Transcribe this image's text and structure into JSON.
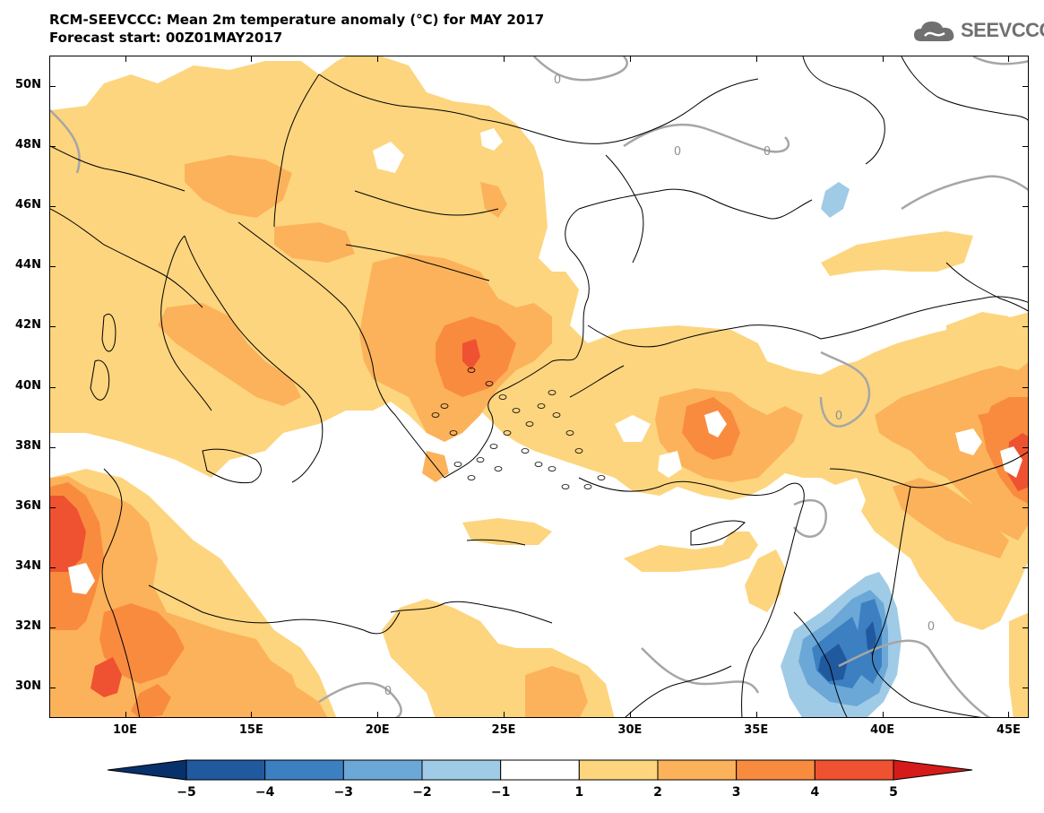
{
  "title": {
    "line1": "RCM-SEEVCCC: Mean 2m temperature anomaly (°C) for MAY 2017",
    "line2": "Forecast start: 00Z01MAY2017"
  },
  "logo": {
    "text": "SEEVCCC",
    "icon": "cloud-icon"
  },
  "map": {
    "type": "filled-contour map",
    "lon_range": [
      7,
      45.8
    ],
    "lat_range": [
      29,
      51
    ],
    "lat_labels": [
      "50N",
      "48N",
      "46N",
      "44N",
      "42N",
      "40N",
      "38N",
      "36N",
      "34N",
      "32N",
      "30N"
    ],
    "lon_labels": [
      "10E",
      "15E",
      "20E",
      "25E",
      "30E",
      "35E",
      "40E",
      "45E"
    ],
    "contour_label": "0",
    "colors": {
      "anom_1_2": "#fdd57e",
      "anom_2_3": "#fcb25a",
      "anom_3_4": "#f98b3f",
      "anom_4_5": "#ef5230",
      "anom_m1_m2": "#a0cbe6",
      "anom_m2_m3": "#6ba8d8",
      "anom_m3_m4": "#3c80c2",
      "anom_m4_m5": "#21599e",
      "zero_contour": "#a6a6a6",
      "coastline": "#000000"
    }
  },
  "colorbar": {
    "labels": [
      "−5",
      "−4",
      "−3",
      "−2",
      "−1",
      "1",
      "2",
      "3",
      "4",
      "5"
    ],
    "colors": [
      "#08306b",
      "#21599e",
      "#3c80c2",
      "#6ba8d8",
      "#a0cbe6",
      "#ffffff",
      "#fdd57e",
      "#fcb25a",
      "#f98b3f",
      "#ef5230",
      "#d51a1a"
    ]
  }
}
